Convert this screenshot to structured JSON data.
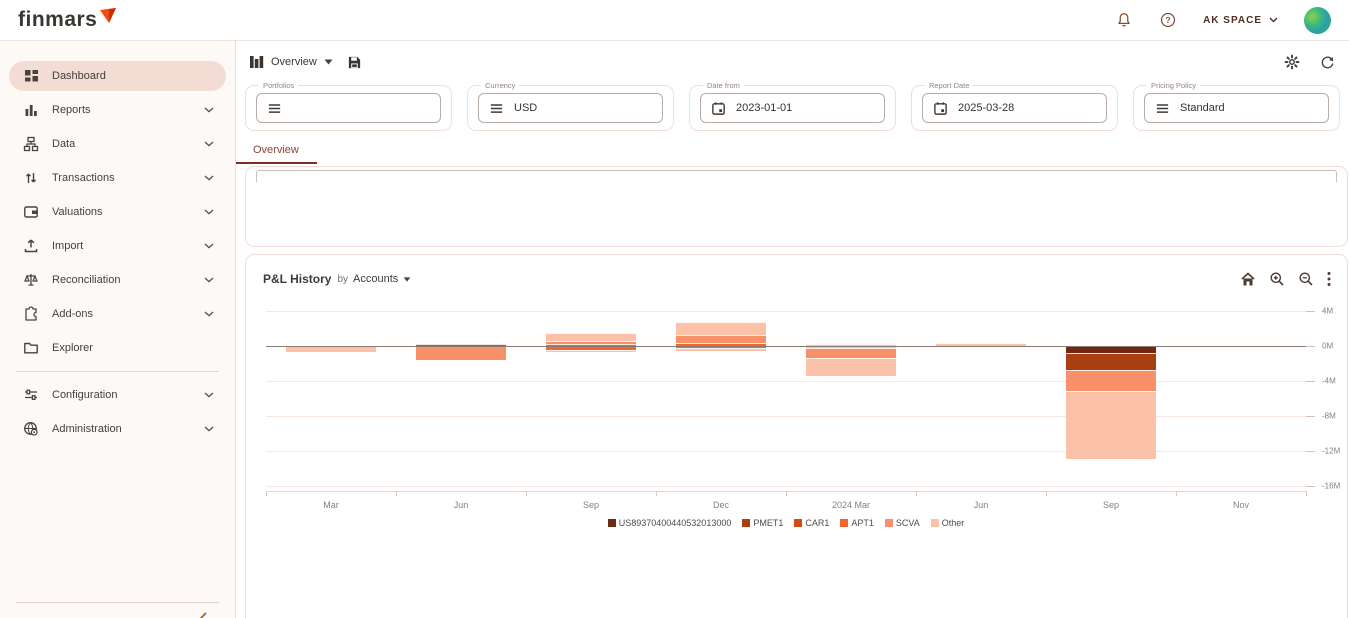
{
  "topbar": {
    "brand": "finmars",
    "brand_mark_color": "#f44b0e",
    "workspace_label": "AK SPACE",
    "icons": [
      "notifications-bell",
      "help",
      "workspace-caret",
      "avatar"
    ]
  },
  "sidebar": {
    "items": [
      {
        "label": "Dashboard",
        "icon": "dashboard-icon",
        "chevron": false,
        "active": true
      },
      {
        "label": "Reports",
        "icon": "reports-icon",
        "chevron": true,
        "active": false
      },
      {
        "label": "Data",
        "icon": "data-icon",
        "chevron": true,
        "active": false
      },
      {
        "label": "Transactions",
        "icon": "transactions-icon",
        "chevron": true,
        "active": false
      },
      {
        "label": "Valuations",
        "icon": "valuations-icon",
        "chevron": true,
        "active": false
      },
      {
        "label": "Import",
        "icon": "import-icon",
        "chevron": true,
        "active": false
      },
      {
        "label": "Reconciliation",
        "icon": "reconciliation-icon",
        "chevron": true,
        "active": false
      },
      {
        "label": "Add-ons",
        "icon": "addons-icon",
        "chevron": true,
        "active": false
      },
      {
        "label": "Explorer",
        "icon": "explorer-icon",
        "chevron": false,
        "active": false
      },
      {
        "divider": true
      },
      {
        "label": "Configuration",
        "icon": "configuration-icon",
        "chevron": true,
        "active": false
      },
      {
        "label": "Administration",
        "icon": "administration-icon",
        "chevron": true,
        "active": false
      }
    ],
    "active_bg_color": "#f2dcd3"
  },
  "main": {
    "layout_selector": {
      "label": "Overview"
    },
    "filters": [
      {
        "label": "Portfolios",
        "icon": "menu-icon",
        "value": ""
      },
      {
        "label": "Currency",
        "icon": "menu-icon",
        "value": "USD"
      },
      {
        "label": "Date from",
        "icon": "calendar-icon",
        "value": "2023-01-01"
      },
      {
        "label": "Report Date",
        "icon": "calendar-icon",
        "value": "2025-03-28"
      },
      {
        "label": "Pricing Policy",
        "icon": "menu-icon",
        "value": "Standard"
      }
    ],
    "tabs": [
      {
        "label": "Overview",
        "active": true
      }
    ]
  },
  "chart_data": {
    "type": "bar",
    "stacked": true,
    "title": "P&L History",
    "by_label": "by",
    "group_by": "Accounts",
    "unit": "M",
    "ylim": [
      -16,
      4
    ],
    "yticks": [
      4,
      0,
      -4,
      -8,
      -12,
      -16
    ],
    "grid": "horizontal",
    "legend_position": "bottom-center",
    "x_categories": [
      "Mar",
      "Jun",
      "Sep",
      "Dec",
      "2024 Mar",
      "Jun",
      "Sep",
      "Nov"
    ],
    "legend": [
      {
        "key": "us893",
        "label": "US89370400440532013000",
        "color": "#6f2811"
      },
      {
        "key": "pmet1",
        "label": "PMET1",
        "color": "#a83f10"
      },
      {
        "key": "car1",
        "label": "CAR1",
        "color": "#d34a12"
      },
      {
        "key": "apt1",
        "label": "APT1",
        "color": "#f1662c"
      },
      {
        "key": "scva",
        "label": "SCVA",
        "color": "#f8906a"
      },
      {
        "key": "other",
        "label": "Other",
        "color": "#fbc2a9"
      }
    ],
    "bars": [
      {
        "month": "Mar",
        "segments": [
          {
            "key": "other",
            "from": -0.05,
            "to": -0.7
          }
        ]
      },
      {
        "month": "Jun",
        "segments": [
          {
            "key": "car1",
            "from": 0.2,
            "to": 0
          },
          {
            "key": "scva",
            "from": 0,
            "to": -1.55
          }
        ]
      },
      {
        "month": "Sep",
        "segments": [
          {
            "key": "other",
            "from": 1.5,
            "to": 0.55
          },
          {
            "key": "scva",
            "from": 0.55,
            "to": 0.2
          },
          {
            "key": "apt1",
            "from": 0.2,
            "to": -0.4
          },
          {
            "key": "other",
            "from": -0.4,
            "to": -0.7
          }
        ]
      },
      {
        "month": "Dec",
        "segments": [
          {
            "key": "other",
            "from": 2.7,
            "to": 1.3
          },
          {
            "key": "scva",
            "from": 1.3,
            "to": 0.35
          },
          {
            "key": "apt1",
            "from": 0.35,
            "to": -0.25
          },
          {
            "key": "other",
            "from": -0.25,
            "to": -0.6
          }
        ]
      },
      {
        "month": "2024 Mar",
        "segments": [
          {
            "key": "other",
            "from": 0.2,
            "to": -0.2
          },
          {
            "key": "scva",
            "from": -0.2,
            "to": -1.4
          },
          {
            "key": "other",
            "from": -1.4,
            "to": -3.4
          }
        ]
      },
      {
        "month": "Jun",
        "segments": [
          {
            "key": "other",
            "from": 0.3,
            "to": 0.05
          }
        ]
      },
      {
        "month": "Sep",
        "segments": [
          {
            "key": "us893",
            "from": 0,
            "to": -0.75
          },
          {
            "key": "pmet1",
            "from": -0.75,
            "to": -2.7
          },
          {
            "key": "scva",
            "from": -2.7,
            "to": -5.1
          },
          {
            "key": "other",
            "from": -5.1,
            "to": -12.9
          }
        ]
      },
      {
        "month": "Nov",
        "segments": []
      }
    ]
  }
}
